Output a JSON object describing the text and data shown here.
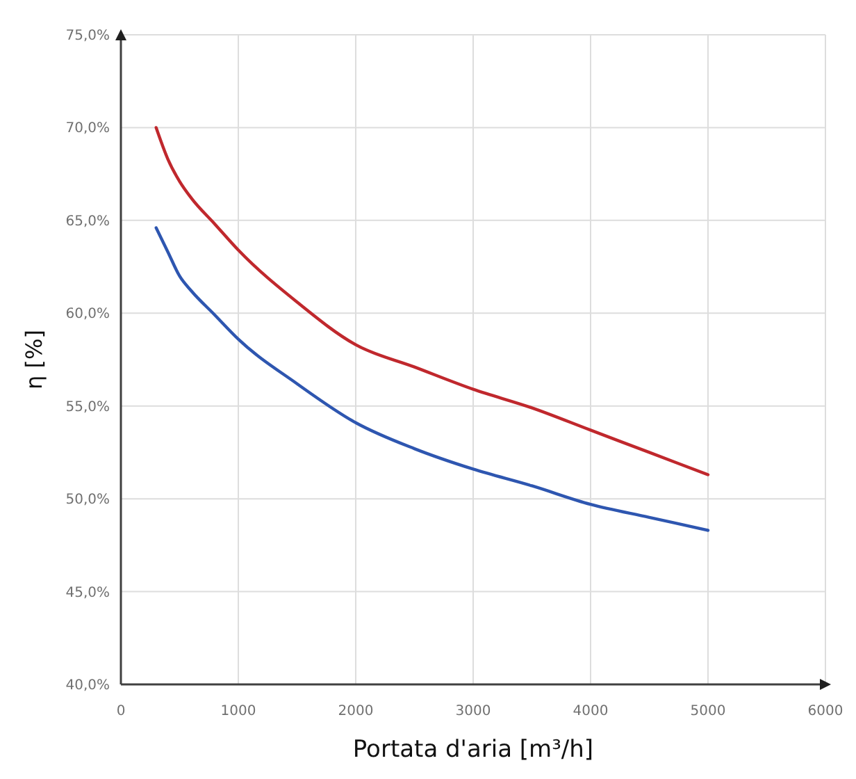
{
  "chart_data": {
    "type": "line",
    "xlabel": "Portata d'aria [m³/h]",
    "ylabel": "η [%]",
    "xlim": [
      0,
      6000
    ],
    "xticks": [
      0,
      1000,
      2000,
      3000,
      4000,
      5000,
      6000
    ],
    "ylim": [
      40,
      75
    ],
    "yticks": [
      {
        "value": 40,
        "label": "40,0%"
      },
      {
        "value": 45,
        "label": "45,0%"
      },
      {
        "value": 50,
        "label": "50,0%"
      },
      {
        "value": 55,
        "label": "55,0%"
      },
      {
        "value": 60,
        "label": "60,0%"
      },
      {
        "value": 65,
        "label": "65,0%"
      },
      {
        "value": 70,
        "label": "70,0%"
      },
      {
        "value": 75,
        "label": "75,0%"
      }
    ],
    "grid": true,
    "marker": "none",
    "line_style": "solid",
    "x": [
      300,
      400,
      500,
      600,
      800,
      1000,
      1500,
      2000,
      2500,
      3000,
      3500,
      4000,
      4500,
      5000
    ],
    "series": [
      {
        "color": "#c0282d",
        "values": [
          70.0,
          68.3,
          67.1,
          66.2,
          64.8,
          63.4,
          60.6,
          58.3,
          57.1,
          55.9,
          54.9,
          53.7,
          52.5,
          51.3
        ]
      },
      {
        "color": "#2e56b0",
        "values": [
          64.6,
          63.3,
          62.0,
          61.2,
          59.9,
          58.6,
          56.2,
          54.1,
          52.7,
          51.6,
          50.7,
          49.7,
          49.0,
          48.3
        ]
      }
    ]
  }
}
